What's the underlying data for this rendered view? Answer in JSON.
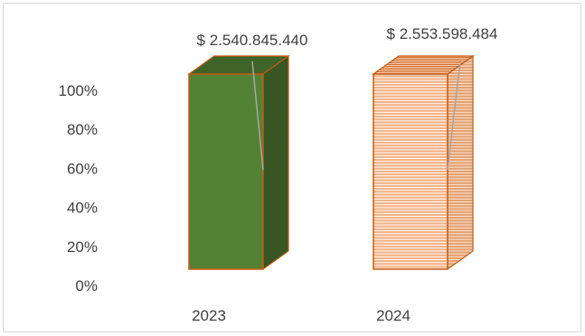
{
  "chart_data": {
    "type": "bar",
    "style": "3d-column-100-percent",
    "categories": [
      "2023",
      "2024"
    ],
    "values": [
      100,
      100
    ],
    "data_labels": [
      "$ 2.540.845.440",
      "$ 2.553.598.484"
    ],
    "title": "",
    "xlabel": "",
    "ylabel": "",
    "yticks": [
      "0%",
      "20%",
      "40%",
      "60%",
      "80%",
      "100%"
    ],
    "ylim": [
      0,
      100
    ],
    "grid": false,
    "legend": "none",
    "colors": {
      "bar_2023_front": "#548235",
      "bar_2023_side": "#375623",
      "bar_2023_top": "#3f6428",
      "bar_2024_front": "#f4b183",
      "bar_2024_stripe": "#ffffff",
      "bar_outline": "#c55a11",
      "leader_line": "#a6a6a6",
      "text": "#404040",
      "border": "#d9d9d9"
    }
  }
}
